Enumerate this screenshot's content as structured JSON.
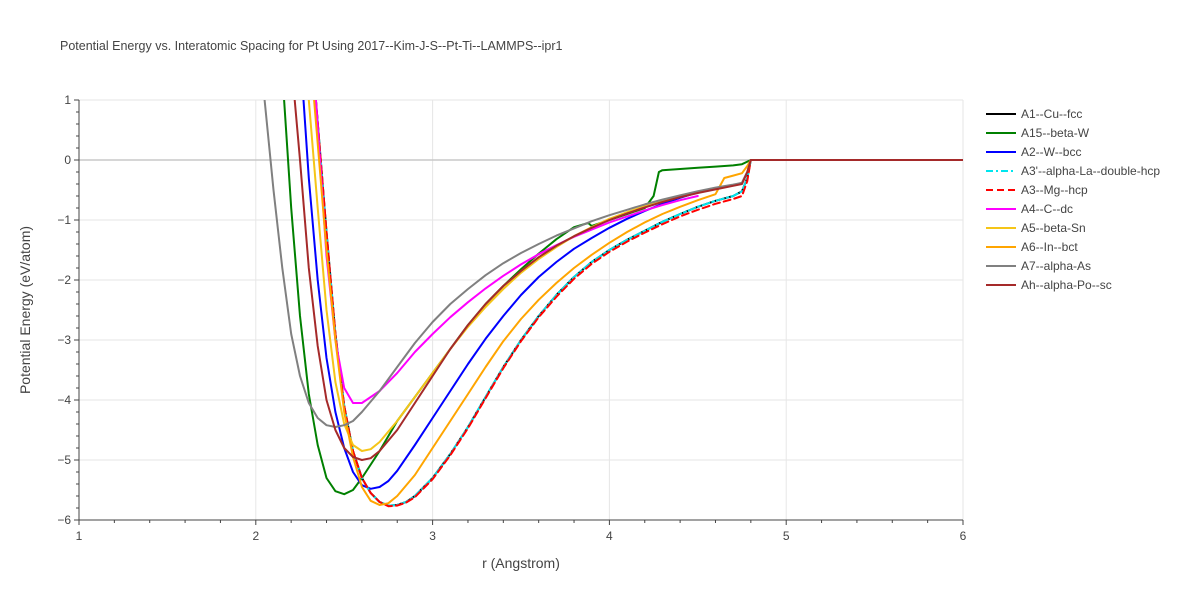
{
  "chart_data": {
    "type": "line",
    "title": "Potential Energy vs. Interatomic Spacing for Pt Using 2017--Kim-J-S--Pt-Ti--LAMMPS--ipr1",
    "xlabel": "r (Angstrom)",
    "ylabel": "Potential Energy (eV/atom)",
    "xlim": [
      1,
      6
    ],
    "ylim": [
      -6,
      1
    ],
    "xticks": [
      1,
      2,
      3,
      4,
      5,
      6
    ],
    "yticks": [
      1,
      0,
      -1,
      -2,
      -3,
      -4,
      -5,
      -6
    ],
    "xtick_labels": [
      "1",
      "2",
      "3",
      "4",
      "5",
      "6"
    ],
    "ytick_labels": [
      "1",
      "0",
      "−1",
      "−2",
      "−3",
      "−4",
      "−5",
      "−6"
    ],
    "grid": true,
    "legend_position": "right",
    "series": [
      {
        "name": "A1--Cu--fcc",
        "color": "#000000",
        "dash": "solid",
        "x": [
          2.34,
          2.4,
          2.45,
          2.5,
          2.55,
          2.6,
          2.65,
          2.7,
          2.75,
          2.8,
          2.85,
          2.9,
          3.0,
          3.1,
          3.2,
          3.3,
          3.4,
          3.5,
          3.6,
          3.7,
          3.8,
          3.9,
          4.0,
          4.1,
          4.2,
          4.3,
          4.4,
          4.5,
          4.6,
          4.7,
          4.75,
          4.78,
          4.8,
          5.0,
          6.0
        ],
        "y": [
          1.0,
          -1.2,
          -2.9,
          -4.1,
          -4.85,
          -5.3,
          -5.55,
          -5.7,
          -5.76,
          -5.75,
          -5.7,
          -5.6,
          -5.3,
          -4.9,
          -4.45,
          -3.95,
          -3.45,
          -3.0,
          -2.6,
          -2.25,
          -1.95,
          -1.7,
          -1.5,
          -1.33,
          -1.18,
          -1.03,
          -0.9,
          -0.78,
          -0.68,
          -0.6,
          -0.52,
          -0.3,
          0.0,
          0.0,
          0.0
        ]
      },
      {
        "name": "A15--beta-W",
        "color": "#008000",
        "dash": "solid",
        "x": [
          2.16,
          2.2,
          2.25,
          2.3,
          2.35,
          2.4,
          2.45,
          2.5,
          2.55,
          2.6,
          2.7,
          2.8,
          2.9,
          3.0,
          3.1,
          3.2,
          3.3,
          3.4,
          3.5,
          3.6,
          3.7,
          3.8,
          3.88,
          3.9,
          4.0,
          4.1,
          4.2,
          4.25,
          4.28,
          4.3,
          4.4,
          4.5,
          4.6,
          4.7,
          4.75,
          4.8,
          5.0,
          6.0
        ],
        "y": [
          1.0,
          -0.8,
          -2.6,
          -3.9,
          -4.75,
          -5.3,
          -5.52,
          -5.57,
          -5.5,
          -5.3,
          -4.85,
          -4.35,
          -3.95,
          -3.55,
          -3.15,
          -2.75,
          -2.4,
          -2.1,
          -1.82,
          -1.56,
          -1.32,
          -1.12,
          -1.05,
          -1.1,
          -1.0,
          -0.9,
          -0.8,
          -0.6,
          -0.2,
          -0.17,
          -0.15,
          -0.13,
          -0.11,
          -0.09,
          -0.07,
          0.0,
          0.0,
          0.0
        ]
      },
      {
        "name": "A2--W--bcc",
        "color": "#0000ff",
        "dash": "solid",
        "x": [
          2.27,
          2.3,
          2.35,
          2.4,
          2.45,
          2.5,
          2.55,
          2.6,
          2.65,
          2.7,
          2.75,
          2.8,
          2.9,
          3.0,
          3.1,
          3.2,
          3.3,
          3.4,
          3.5,
          3.6,
          3.7,
          3.8,
          3.9,
          4.0,
          4.1,
          4.2,
          4.3,
          4.4,
          4.5,
          4.6,
          4.7,
          4.75,
          4.78,
          4.8,
          5.0,
          6.0
        ],
        "y": [
          1.0,
          -0.3,
          -2.0,
          -3.3,
          -4.2,
          -4.8,
          -5.2,
          -5.42,
          -5.48,
          -5.45,
          -5.35,
          -5.18,
          -4.75,
          -4.3,
          -3.85,
          -3.4,
          -2.98,
          -2.6,
          -2.25,
          -1.95,
          -1.7,
          -1.48,
          -1.3,
          -1.13,
          -0.98,
          -0.85,
          -0.73,
          -0.63,
          -0.54,
          -0.47,
          -0.42,
          -0.38,
          -0.2,
          0.0,
          0.0,
          0.0
        ]
      },
      {
        "name": "A3'--alpha-La--double-hcp",
        "color": "#00e5ee",
        "dash": "dashdot",
        "x": [
          2.34,
          2.4,
          2.45,
          2.5,
          2.55,
          2.6,
          2.65,
          2.7,
          2.75,
          2.8,
          2.85,
          2.9,
          3.0,
          3.1,
          3.2,
          3.3,
          3.4,
          3.5,
          3.6,
          3.7,
          3.8,
          3.9,
          4.0,
          4.1,
          4.2,
          4.3,
          4.4,
          4.5,
          4.6,
          4.7,
          4.75,
          4.78,
          4.8,
          5.0,
          6.0
        ],
        "y": [
          1.0,
          -1.2,
          -2.9,
          -4.1,
          -4.85,
          -5.3,
          -5.55,
          -5.7,
          -5.76,
          -5.75,
          -5.7,
          -5.6,
          -5.3,
          -4.9,
          -4.45,
          -3.95,
          -3.45,
          -3.0,
          -2.6,
          -2.25,
          -1.95,
          -1.7,
          -1.5,
          -1.33,
          -1.18,
          -1.03,
          -0.9,
          -0.78,
          -0.68,
          -0.6,
          -0.52,
          -0.3,
          0.0,
          0.0,
          0.0
        ]
      },
      {
        "name": "A3--Mg--hcp",
        "color": "#ff0000",
        "dash": "dash",
        "x": [
          2.34,
          2.4,
          2.45,
          2.5,
          2.55,
          2.6,
          2.65,
          2.7,
          2.75,
          2.8,
          2.85,
          2.9,
          3.0,
          3.1,
          3.2,
          3.3,
          3.4,
          3.5,
          3.6,
          3.7,
          3.8,
          3.9,
          4.0,
          4.1,
          4.2,
          4.3,
          4.4,
          4.5,
          4.6,
          4.7,
          4.75,
          4.78,
          4.8,
          5.0,
          6.0
        ],
        "y": [
          1.0,
          -1.2,
          -2.9,
          -4.1,
          -4.85,
          -5.3,
          -5.55,
          -5.7,
          -5.77,
          -5.76,
          -5.71,
          -5.62,
          -5.32,
          -4.92,
          -4.47,
          -3.97,
          -3.47,
          -3.02,
          -2.62,
          -2.28,
          -1.98,
          -1.73,
          -1.53,
          -1.36,
          -1.21,
          -1.07,
          -0.94,
          -0.83,
          -0.73,
          -0.65,
          -0.6,
          -0.35,
          0.0,
          0.0,
          0.0
        ]
      },
      {
        "name": "A4--C--dc",
        "color": "#ff00ff",
        "dash": "solid",
        "x": [
          2.34,
          2.4,
          2.45,
          2.5,
          2.55,
          2.6,
          2.7,
          2.8,
          2.9,
          3.0,
          3.1,
          3.2,
          3.3,
          3.4,
          3.5,
          3.6,
          3.7,
          3.8,
          3.9,
          4.0,
          4.1,
          4.2,
          4.3,
          4.4,
          4.5
        ],
        "y": [
          1.0,
          -1.6,
          -3.0,
          -3.8,
          -4.05,
          -4.05,
          -3.85,
          -3.55,
          -3.2,
          -2.9,
          -2.62,
          -2.37,
          -2.14,
          -1.93,
          -1.74,
          -1.57,
          -1.42,
          -1.28,
          -1.16,
          -1.04,
          -0.94,
          -0.84,
          -0.75,
          -0.67,
          -0.6
        ]
      },
      {
        "name": "A5--beta-Sn",
        "color": "#f5c518",
        "dash": "solid",
        "x": [
          2.3,
          2.35,
          2.4,
          2.45,
          2.5,
          2.55,
          2.6,
          2.65,
          2.7,
          2.8,
          2.9,
          3.0,
          3.1,
          3.2,
          3.3,
          3.4,
          3.5,
          3.6,
          3.7,
          3.8,
          3.9,
          4.0,
          4.1,
          4.2,
          4.3,
          4.4,
          4.5,
          4.6,
          4.7,
          4.75,
          4.78,
          4.8,
          5.0,
          6.0
        ],
        "y": [
          1.0,
          -0.8,
          -2.5,
          -3.7,
          -4.4,
          -4.75,
          -4.85,
          -4.82,
          -4.7,
          -4.35,
          -3.95,
          -3.55,
          -3.15,
          -2.78,
          -2.45,
          -2.15,
          -1.88,
          -1.65,
          -1.45,
          -1.27,
          -1.12,
          -0.98,
          -0.87,
          -0.77,
          -0.68,
          -0.6,
          -0.53,
          -0.47,
          -0.42,
          -0.38,
          -0.2,
          0.0,
          0.0,
          0.0
        ]
      },
      {
        "name": "A6--In--bct",
        "color": "#ffa500",
        "dash": "solid",
        "x": [
          2.33,
          2.4,
          2.45,
          2.5,
          2.55,
          2.6,
          2.65,
          2.7,
          2.75,
          2.8,
          2.9,
          3.0,
          3.1,
          3.2,
          3.3,
          3.4,
          3.5,
          3.6,
          3.7,
          3.8,
          3.9,
          4.0,
          4.1,
          4.2,
          4.3,
          4.4,
          4.5,
          4.6,
          4.65,
          4.7,
          4.75,
          4.78,
          4.8,
          5.0,
          6.0
        ],
        "y": [
          1.0,
          -1.5,
          -3.0,
          -4.2,
          -4.95,
          -5.45,
          -5.68,
          -5.75,
          -5.72,
          -5.6,
          -5.25,
          -4.8,
          -4.35,
          -3.9,
          -3.45,
          -3.02,
          -2.65,
          -2.33,
          -2.05,
          -1.8,
          -1.58,
          -1.38,
          -1.2,
          -1.04,
          -0.9,
          -0.78,
          -0.67,
          -0.57,
          -0.3,
          -0.26,
          -0.22,
          -0.1,
          0.0,
          0.0,
          0.0
        ]
      },
      {
        "name": "A7--alpha-As",
        "color": "#808080",
        "dash": "solid",
        "x": [
          2.05,
          2.1,
          2.15,
          2.2,
          2.25,
          2.3,
          2.35,
          2.4,
          2.45,
          2.5,
          2.55,
          2.6,
          2.7,
          2.8,
          2.9,
          3.0,
          3.1,
          3.2,
          3.3,
          3.4,
          3.5,
          3.6,
          3.7,
          3.8,
          3.9,
          4.0,
          4.1,
          4.2,
          4.3,
          4.4,
          4.5,
          4.6,
          4.7,
          4.75,
          4.78,
          4.8,
          5.0,
          6.0
        ],
        "y": [
          1.0,
          -0.5,
          -1.8,
          -2.9,
          -3.6,
          -4.05,
          -4.3,
          -4.42,
          -4.45,
          -4.42,
          -4.35,
          -4.2,
          -3.85,
          -3.45,
          -3.05,
          -2.7,
          -2.4,
          -2.15,
          -1.92,
          -1.72,
          -1.55,
          -1.4,
          -1.26,
          -1.14,
          -1.02,
          -0.92,
          -0.83,
          -0.74,
          -0.66,
          -0.59,
          -0.52,
          -0.46,
          -0.41,
          -0.38,
          -0.2,
          0.0,
          0.0,
          0.0
        ]
      },
      {
        "name": "Ah--alpha-Po--sc",
        "color": "#a52a2a",
        "dash": "solid",
        "x": [
          2.22,
          2.25,
          2.3,
          2.35,
          2.4,
          2.45,
          2.5,
          2.55,
          2.6,
          2.65,
          2.7,
          2.8,
          2.9,
          3.0,
          3.1,
          3.2,
          3.3,
          3.4,
          3.5,
          3.6,
          3.7,
          3.8,
          3.9,
          4.0,
          4.1,
          4.2,
          4.3,
          4.4,
          4.5,
          4.6,
          4.7,
          4.75,
          4.78,
          4.8,
          5.0,
          6.0
        ],
        "y": [
          1.0,
          0.0,
          -1.8,
          -3.1,
          -4.0,
          -4.5,
          -4.8,
          -4.95,
          -5.0,
          -4.97,
          -4.85,
          -4.5,
          -4.05,
          -3.6,
          -3.15,
          -2.75,
          -2.4,
          -2.1,
          -1.85,
          -1.62,
          -1.43,
          -1.27,
          -1.13,
          -1.0,
          -0.89,
          -0.79,
          -0.7,
          -0.62,
          -0.55,
          -0.49,
          -0.43,
          -0.4,
          -0.2,
          0.0,
          0.0,
          0.0
        ]
      }
    ]
  }
}
